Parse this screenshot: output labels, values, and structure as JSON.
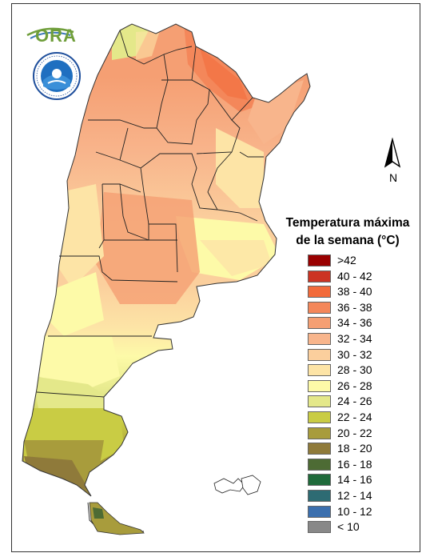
{
  "logo": {
    "ora_text": "ORA",
    "smn_icon": "smn-seal-icon"
  },
  "north_arrow": {
    "label": "N",
    "icon": "north-arrow-icon"
  },
  "legend": {
    "title_line1": "Temperatura máxima",
    "title_line2": "de la semana (°C)",
    "items": [
      {
        "label": ">42",
        "color": "#990000"
      },
      {
        "label": "40 - 42",
        "color": "#cc3322"
      },
      {
        "label": "38 - 40",
        "color": "#f26a3a"
      },
      {
        "label": "36 - 38",
        "color": "#f4875a"
      },
      {
        "label": "34 - 36",
        "color": "#f59f73"
      },
      {
        "label": "32 - 34",
        "color": "#f8b58c"
      },
      {
        "label": "30 - 32",
        "color": "#fbcf9d"
      },
      {
        "label": "28 - 30",
        "color": "#fde4a6"
      },
      {
        "label": "26 - 28",
        "color": "#fdfaa8"
      },
      {
        "label": "24 - 26",
        "color": "#e4e88a"
      },
      {
        "label": "22 - 24",
        "color": "#c9cc44"
      },
      {
        "label": "20 - 22",
        "color": "#a89c3c"
      },
      {
        "label": "18 - 20",
        "color": "#8f7a3a"
      },
      {
        "label": "16 - 18",
        "color": "#4d6b34"
      },
      {
        "label": "14 - 16",
        "color": "#1f6a3a"
      },
      {
        "label": "12 - 14",
        "color": "#2d6b73"
      },
      {
        "label": "10 - 12",
        "color": "#3b6fae"
      },
      {
        "label": "< 10",
        "color": "#888888"
      }
    ]
  }
}
